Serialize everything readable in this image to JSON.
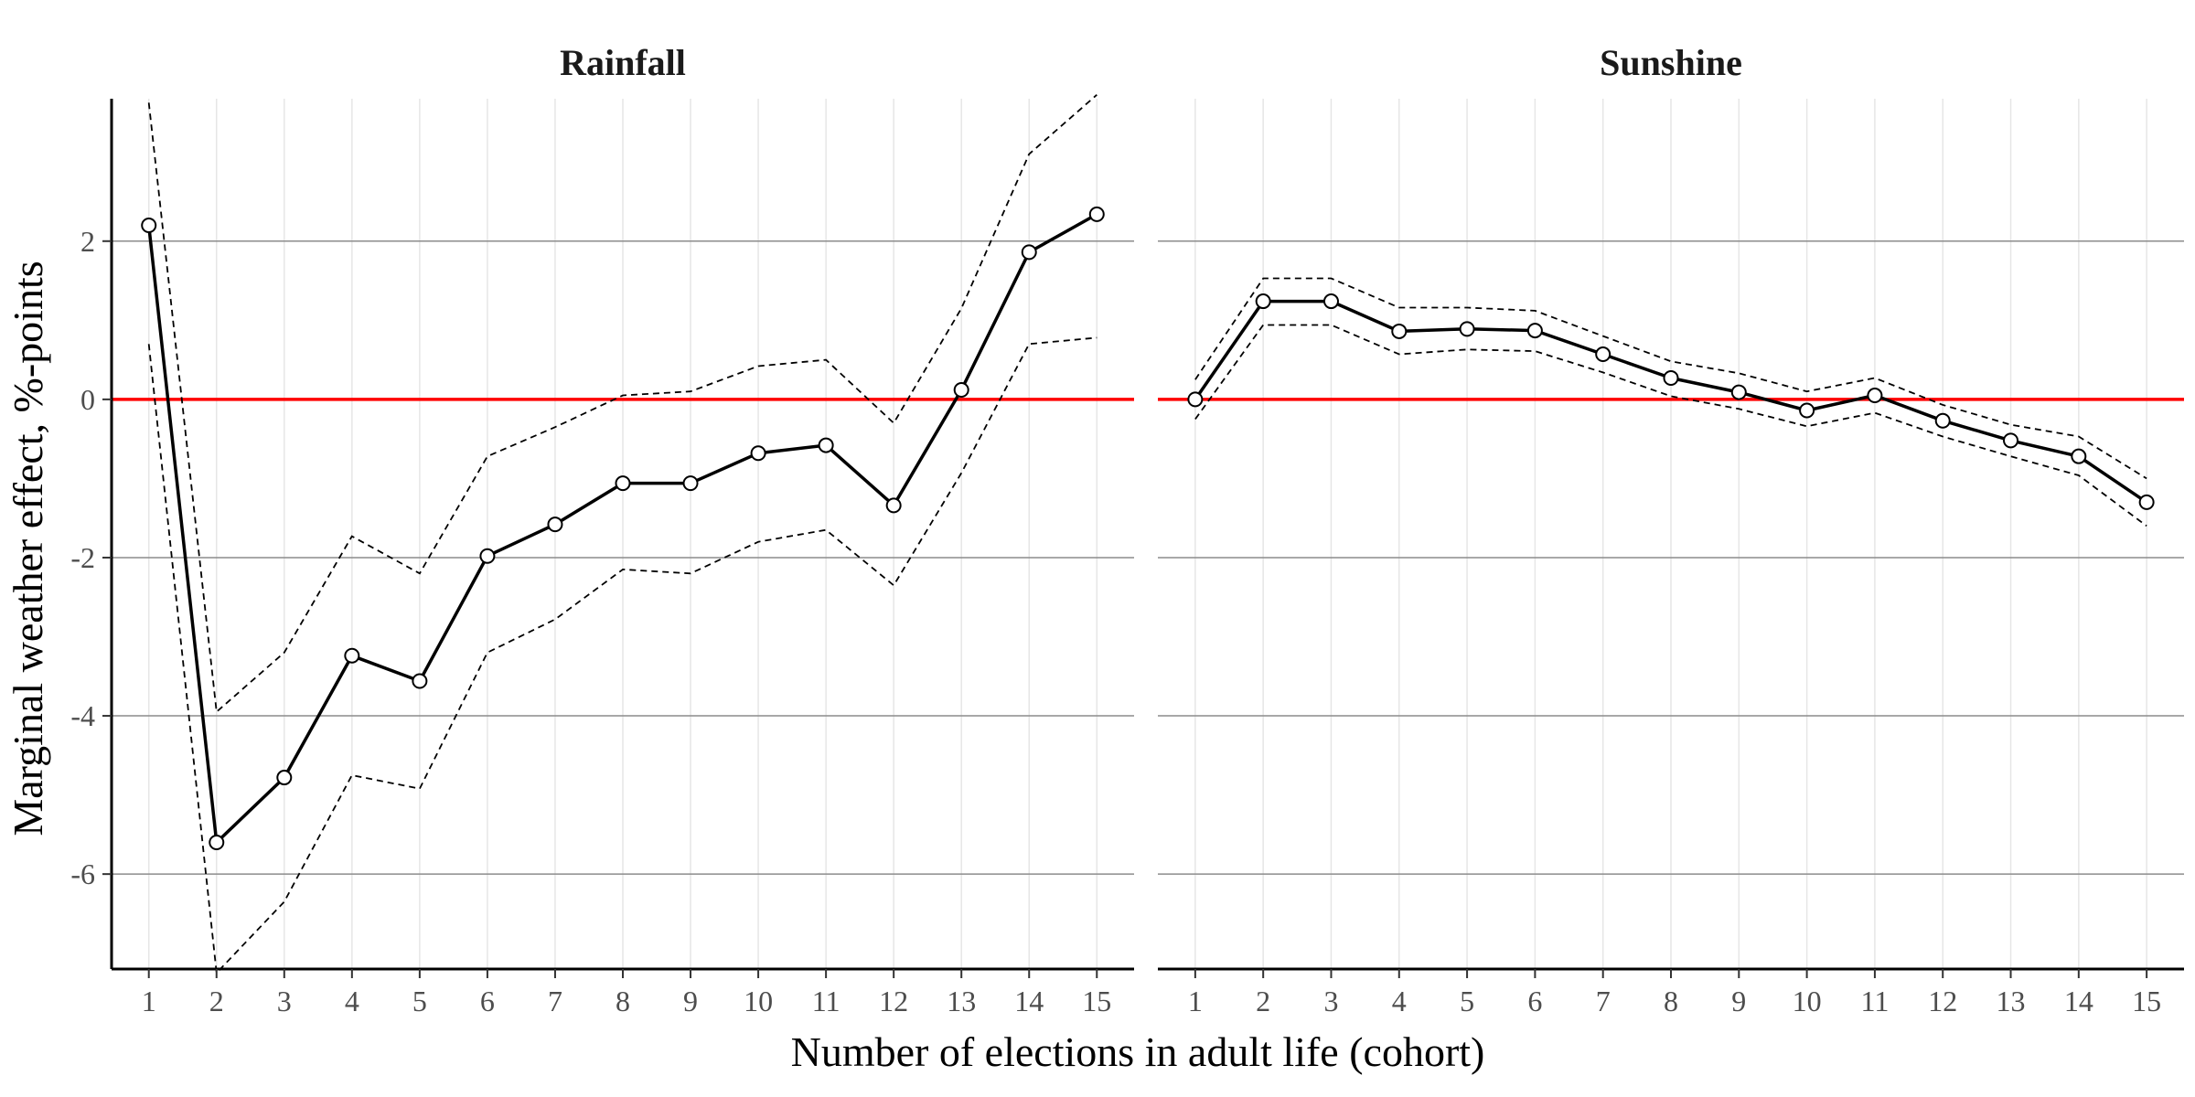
{
  "chart_data": {
    "type": "line",
    "x_axis_title": "Number of elections in adult life (cohort)",
    "y_axis_title": "Marginal weather effect, %-points",
    "x_ticks": [
      1,
      2,
      3,
      4,
      5,
      6,
      7,
      8,
      9,
      10,
      11,
      12,
      13,
      14,
      15
    ],
    "y_ticks": [
      2,
      0,
      -2,
      -4,
      -6
    ],
    "xlim": [
      0.45,
      15.55
    ],
    "ylim": [
      -7.2,
      3.8
    ],
    "reference_line": {
      "y": 0,
      "color": "#ff0000"
    },
    "panels": [
      {
        "title": "Rainfall",
        "x": [
          1,
          2,
          3,
          4,
          5,
          6,
          7,
          8,
          9,
          10,
          11,
          12,
          13,
          14,
          15
        ],
        "estimate": [
          2.2,
          -5.6,
          -4.78,
          -3.24,
          -3.56,
          -1.98,
          -1.58,
          -1.06,
          -1.06,
          -0.68,
          -0.58,
          -1.34,
          0.12,
          1.86,
          2.34
        ],
        "upper": [
          3.75,
          -3.95,
          -3.2,
          -1.73,
          -2.2,
          -0.72,
          -0.35,
          0.05,
          0.1,
          0.42,
          0.5,
          -0.3,
          1.15,
          3.1,
          3.85
        ],
        "lower": [
          0.7,
          -7.25,
          -6.35,
          -4.75,
          -4.92,
          -3.2,
          -2.78,
          -2.15,
          -2.2,
          -1.8,
          -1.65,
          -2.35,
          -0.93,
          0.7,
          0.78
        ]
      },
      {
        "title": "Sunshine",
        "x": [
          1,
          2,
          3,
          4,
          5,
          6,
          7,
          8,
          9,
          10,
          11,
          12,
          13,
          14,
          15
        ],
        "estimate": [
          0.0,
          1.24,
          1.24,
          0.86,
          0.89,
          0.87,
          0.57,
          0.27,
          0.09,
          -0.14,
          0.05,
          -0.27,
          -0.52,
          -0.72,
          -1.3
        ],
        "upper": [
          0.25,
          1.53,
          1.53,
          1.16,
          1.16,
          1.12,
          0.8,
          0.48,
          0.33,
          0.1,
          0.27,
          -0.07,
          -0.32,
          -0.47,
          -1.0
        ],
        "lower": [
          -0.25,
          0.94,
          0.94,
          0.57,
          0.63,
          0.61,
          0.34,
          0.04,
          -0.12,
          -0.34,
          -0.17,
          -0.47,
          -0.72,
          -0.96,
          -1.6
        ]
      }
    ]
  }
}
